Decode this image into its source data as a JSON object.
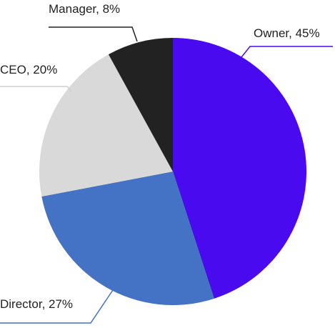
{
  "chart_data": {
    "type": "pie",
    "categories": [
      "Owner",
      "Director",
      "CEO",
      "Manager"
    ],
    "values": [
      45,
      27,
      20,
      8
    ],
    "value_labels": [
      "Owner, 45%",
      "Director, 27%",
      "CEO, 20%",
      "Manager, 8%"
    ],
    "colors": [
      "#4a0aef",
      "#4472c4",
      "#d9d9d9",
      "#222222"
    ]
  }
}
